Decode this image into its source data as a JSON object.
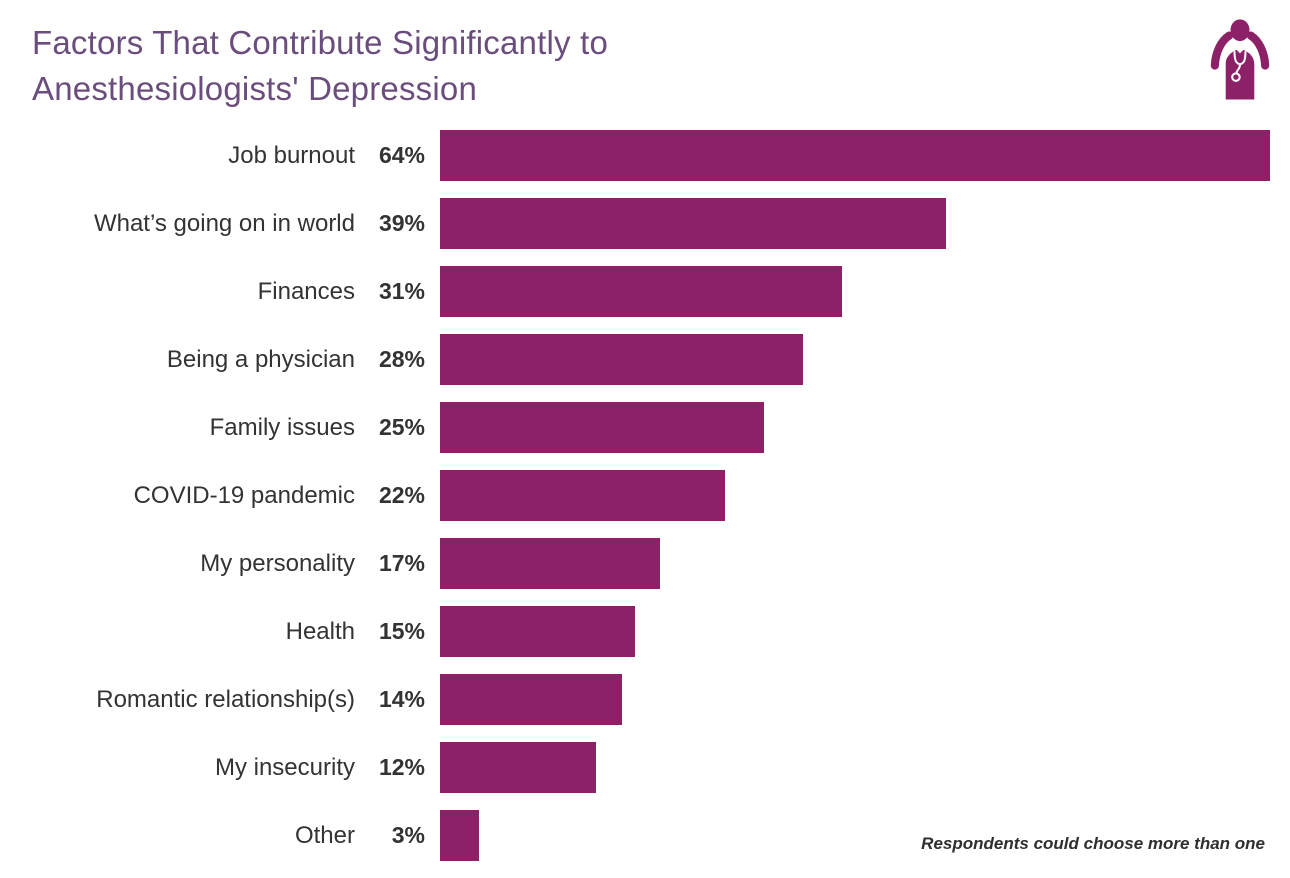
{
  "title": "Factors That Contribute Significantly to Anesthesiologists' Depression",
  "footnote": "Respondents could choose more than one",
  "icon": "stressed-physician-icon",
  "colors": {
    "bar": "#8D2168",
    "title": "#6A4D7D",
    "label": "#333333",
    "note": "#2F2F2F"
  },
  "chart_data": {
    "type": "bar",
    "orientation": "horizontal",
    "title": "Factors That Contribute Significantly to Anesthesiologists' Depression",
    "categories": [
      "Job burnout",
      "What’s going on in world",
      "Finances",
      "Being a physician",
      "Family issues",
      "COVID-19 pandemic",
      "My personality",
      "Health",
      "Romantic relationship(s)",
      "My insecurity",
      "Other"
    ],
    "values": [
      64,
      39,
      31,
      28,
      25,
      22,
      17,
      15,
      14,
      12,
      3
    ],
    "value_suffix": "%",
    "scale_max": 64,
    "xlabel": "",
    "ylabel": "",
    "grid": false,
    "legend": false,
    "annotations": [
      "Respondents could choose more than one"
    ]
  }
}
